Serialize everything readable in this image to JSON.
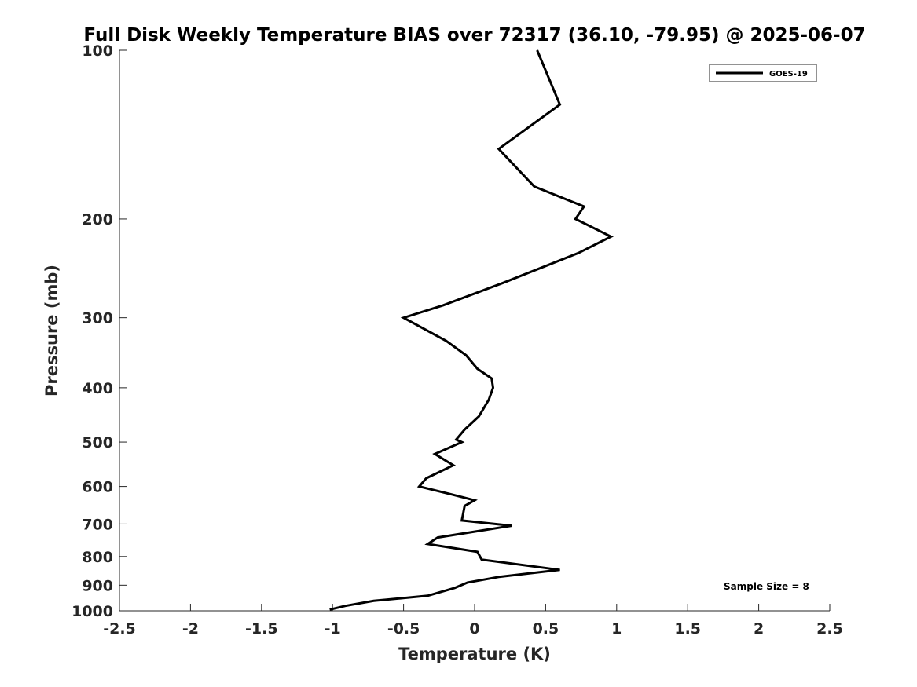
{
  "chart_data": {
    "type": "line",
    "title": "Full Disk Weekly Temperature BIAS over 72317 (36.10, -79.95) @ 2025-06-07",
    "xlabel": "Temperature (K)",
    "ylabel": "Pressure (mb)",
    "xlim": [
      -2.5,
      2.5
    ],
    "ylim": [
      100,
      1000
    ],
    "y_scale": "log",
    "y_reversed": true,
    "xticks": [
      -2.5,
      -2,
      -1.5,
      -1,
      -0.5,
      0,
      0.5,
      1,
      1.5,
      2,
      2.5
    ],
    "xtick_labels": [
      "-2.5",
      "-2",
      "-1.5",
      "-1",
      "-0.5",
      "0",
      "0.5",
      "1",
      "1.5",
      "2",
      "2.5"
    ],
    "yticks": [
      100,
      200,
      300,
      400,
      500,
      600,
      700,
      800,
      900,
      1000
    ],
    "ytick_labels": [
      "100",
      "200",
      "300",
      "400",
      "500",
      "600",
      "700",
      "800",
      "900",
      "1000"
    ],
    "grid": false,
    "legend_position": "top-right",
    "annotation": "Sample Size = 8",
    "series": [
      {
        "name": "GOES-19",
        "color": "#000000",
        "points": [
          [
            0.44,
            100
          ],
          [
            0.6,
            125
          ],
          [
            0.17,
            150
          ],
          [
            0.42,
            175
          ],
          [
            0.77,
            190
          ],
          [
            0.71,
            200
          ],
          [
            0.96,
            215
          ],
          [
            0.73,
            230
          ],
          [
            0.2,
            260
          ],
          [
            -0.22,
            285
          ],
          [
            -0.5,
            300
          ],
          [
            -0.2,
            330
          ],
          [
            -0.06,
            350
          ],
          [
            0.02,
            370
          ],
          [
            0.12,
            385
          ],
          [
            0.13,
            400
          ],
          [
            0.1,
            420
          ],
          [
            0.03,
            450
          ],
          [
            -0.07,
            475
          ],
          [
            -0.13,
            495
          ],
          [
            -0.09,
            500
          ],
          [
            -0.28,
            525
          ],
          [
            -0.15,
            550
          ],
          [
            -0.34,
            580
          ],
          [
            -0.39,
            600
          ],
          [
            -0.16,
            620
          ],
          [
            0.0,
            635
          ],
          [
            -0.07,
            650
          ],
          [
            -0.08,
            670
          ],
          [
            -0.09,
            690
          ],
          [
            0.26,
            705
          ],
          [
            -0.26,
            740
          ],
          [
            -0.33,
            760
          ],
          [
            0.02,
            785
          ],
          [
            0.05,
            810
          ],
          [
            0.6,
            845
          ],
          [
            0.17,
            870
          ],
          [
            -0.05,
            890
          ],
          [
            -0.14,
            910
          ],
          [
            -0.33,
            940
          ],
          [
            -0.71,
            960
          ],
          [
            -0.91,
            980
          ],
          [
            -1.02,
            995
          ]
        ]
      }
    ]
  }
}
